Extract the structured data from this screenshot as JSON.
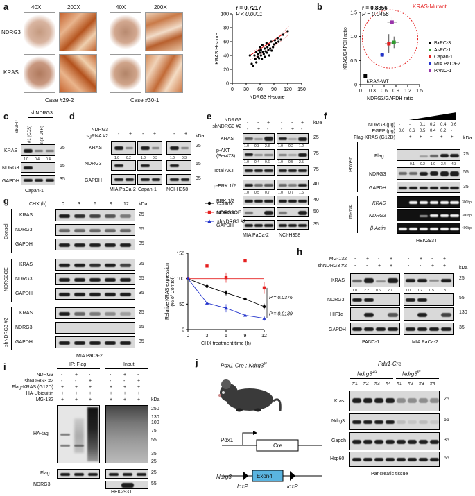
{
  "panels": {
    "a": "a",
    "b": "b",
    "c": "c",
    "d": "d",
    "e": "e",
    "f": "f",
    "g": "g",
    "h": "h",
    "i": "i",
    "j": "j"
  },
  "a": {
    "mags": [
      "40X",
      "200X",
      "40X",
      "200X"
    ],
    "rows": [
      "NDRG3",
      "KRAS"
    ],
    "cases": [
      "Case #29-2",
      "Case #30-1"
    ]
  },
  "chart_data": [
    {
      "type": "scatter",
      "xlabel": "NDRG3 H-score",
      "ylabel": "KRAS H-score",
      "xlim": [
        0,
        150
      ],
      "ylim": [
        0,
        100
      ],
      "xticks": [
        "0",
        "30",
        "60",
        "90",
        "120",
        "150"
      ],
      "yticks": [
        "0",
        "20",
        "40",
        "60",
        "80",
        "100"
      ],
      "r_text": "r = 0.7217",
      "p_text": "P < 0.0001",
      "points": [
        [
          38,
          40
        ],
        [
          42,
          28
        ],
        [
          45,
          25
        ],
        [
          48,
          40
        ],
        [
          50,
          35
        ],
        [
          52,
          45
        ],
        [
          52,
          30
        ],
        [
          55,
          42
        ],
        [
          55,
          38
        ],
        [
          58,
          47
        ],
        [
          58,
          36
        ],
        [
          60,
          52
        ],
        [
          60,
          44
        ],
        [
          62,
          40
        ],
        [
          62,
          48
        ],
        [
          64,
          35
        ],
        [
          65,
          55
        ],
        [
          66,
          45
        ],
        [
          68,
          42
        ],
        [
          70,
          50
        ],
        [
          70,
          38
        ],
        [
          72,
          46
        ],
        [
          74,
          58
        ],
        [
          75,
          44
        ],
        [
          76,
          52
        ],
        [
          78,
          48
        ],
        [
          80,
          40
        ],
        [
          80,
          55
        ],
        [
          82,
          50
        ],
        [
          84,
          60
        ],
        [
          85,
          47
        ],
        [
          88,
          52
        ],
        [
          90,
          56
        ],
        [
          92,
          62
        ],
        [
          95,
          58
        ],
        [
          98,
          65
        ],
        [
          100,
          60
        ],
        [
          105,
          63
        ],
        [
          110,
          70
        ],
        [
          120,
          75
        ]
      ],
      "fit": [
        [
          38,
          40
        ],
        [
          122,
          76
        ]
      ]
    },
    {
      "type": "scatter",
      "xlabel": "NDRG3/GAPDH ratio",
      "ylabel": "KRAS/GAPDH ratio",
      "xlim": [
        0,
        1.5
      ],
      "ylim": [
        0,
        1.5
      ],
      "xticks": [
        "0",
        "0.3",
        "0.6",
        "0.9",
        "1.2",
        "1.5"
      ],
      "yticks": [
        "0",
        "0.5",
        "1.0",
        "1.5"
      ],
      "r_text": "r = 0.8856",
      "p_text": "P = 0.0456",
      "mutant_label": "KRAS-Mutant",
      "wt_label": "KRAS-WT",
      "series": [
        {
          "name": "BxPC-3",
          "x": 0.12,
          "y": 0.18,
          "xerr": 0.02,
          "yerr": 0.02,
          "color": "#000000"
        },
        {
          "name": "AsPC-1",
          "x": 0.85,
          "y": 0.88,
          "xerr": 0.12,
          "yerr": 0.12,
          "color": "#2e9c2e"
        },
        {
          "name": "Capan-1",
          "x": 0.72,
          "y": 0.85,
          "xerr": 0.1,
          "yerr": 0.2,
          "color": "#e52020"
        },
        {
          "name": "MIA PaCa-2",
          "x": 0.55,
          "y": 0.62,
          "xerr": 0.05,
          "yerr": 0.04,
          "color": "#2233cc"
        },
        {
          "name": "PANC-1",
          "x": 0.8,
          "y": 1.3,
          "xerr": 0.12,
          "yerr": 0.1,
          "color": "#9933aa"
        }
      ]
    },
    {
      "type": "line",
      "xlabel": "CHX treatment time (h)",
      "ylabel": "Relative KRAS expression\n(% of Control)",
      "xlim": [
        0,
        12
      ],
      "ylim": [
        0,
        150
      ],
      "xticks": [
        "0",
        "3",
        "6",
        "9",
        "12"
      ],
      "yticks": [
        "0",
        "50",
        "100",
        "150"
      ],
      "x": [
        0,
        3,
        6,
        9,
        12
      ],
      "series": [
        {
          "name": "Control",
          "values": [
            100,
            85,
            72,
            60,
            45
          ],
          "err": [
            0,
            4,
            5,
            5,
            6
          ],
          "color": "#000000",
          "marker": "circle"
        },
        {
          "name": "NDRG3OE",
          "values": [
            100,
            125,
            102,
            135,
            82
          ],
          "err": [
            0,
            8,
            10,
            10,
            12
          ],
          "color": "#e52020",
          "marker": "square"
        },
        {
          "name": "shNDRG3 #2",
          "values": [
            100,
            52,
            42,
            28,
            22
          ],
          "err": [
            0,
            6,
            8,
            6,
            5
          ],
          "color": "#2233cc",
          "marker": "triangle"
        }
      ],
      "p1": "P = 0.0376",
      "p2": "P = 0.0189"
    }
  ],
  "c": {
    "sh": "shNDRG3",
    "lanes": [
      "shGFP",
      "#1 (CDS)",
      "#2 (3' UTR)"
    ],
    "rows": [
      "KRAS",
      "NDRG3",
      "GAPDH"
    ],
    "q": [
      "1.0",
      "0.4",
      "0.4"
    ],
    "kda": [
      "25",
      "55",
      "35"
    ],
    "cell": "Capan-1"
  },
  "d": {
    "rowlabels": [
      "NDRG3",
      "sgRNA #2"
    ],
    "signs": [
      "-",
      "+",
      "-",
      "+",
      "-",
      "+"
    ],
    "rows": [
      "KRAS",
      "NDRG3",
      "GAPDH"
    ],
    "q": [
      "1.0",
      "0.2",
      "1.0",
      "0.3",
      "1.0",
      "0.3"
    ],
    "kda": [
      "25",
      "55",
      "35"
    ],
    "cells": [
      "MIA PaCa-2",
      "Capan-1",
      "NCI-H358"
    ],
    "kda_hdr": "kDa"
  },
  "e": {
    "rowlabels": [
      "NDRG3",
      "shNDRG3 #2"
    ],
    "s1": [
      "-",
      "-",
      "+",
      "-",
      "-",
      "+"
    ],
    "s2": [
      "-",
      "+",
      "-",
      "-",
      "+",
      "-"
    ],
    "rows": [
      "KRAS",
      "p-AKT\n(Ser473)",
      "Total AKT",
      "p-ERK 1/2",
      "ERK 1/2",
      "NDRG3",
      "GAPDH"
    ],
    "q1": [
      "1.0",
      "0.3",
      "2.3",
      "1.0",
      "0.2",
      "1.2"
    ],
    "q2": [
      "1.0",
      "0.4",
      "0.6",
      "1.0",
      "0.5",
      "2.5"
    ],
    "q3": [
      "1.0",
      "0.5",
      "0.7",
      "1.0",
      "0.7",
      "1.6"
    ],
    "kda": [
      "25",
      "75",
      "75",
      "40",
      "40",
      "50",
      "35"
    ],
    "cells": [
      "MIA PaCa-2",
      "NCI-H358"
    ],
    "kda_hdr": "kDa"
  },
  "f": {
    "rowlabels": [
      "NDRG3 (µg)",
      "EGFP (µg)",
      "Flag-KRAS (G12D)"
    ],
    "ndrg3": [
      "-",
      "-",
      "0.1",
      "0.2",
      "0.4",
      "0.6"
    ],
    "egfp": [
      "0.6",
      "0.6",
      "0.5",
      "0.4",
      "0.2",
      "-"
    ],
    "flag": [
      "-",
      "+",
      "+",
      "+",
      "+",
      "+"
    ],
    "rows": [
      "Flag",
      "NDRG3",
      "GAPDH",
      "KRAS",
      "NDRG3",
      "β-Actin"
    ],
    "q": [
      "0.1",
      "0.2",
      "1.0",
      "3.4",
      "4.3"
    ],
    "kda": [
      "25",
      "55",
      "35"
    ],
    "bp": [
      "300bp",
      "300bp",
      "400bp"
    ],
    "protein": "Protein",
    "mrna": "mRNA",
    "cell": "HEK293T",
    "kda_hdr": "kDa"
  },
  "g": {
    "chx": "CHX (h)",
    "times": [
      "0",
      "3",
      "6",
      "9",
      "12"
    ],
    "groups": [
      "Control",
      "NDRG3OE",
      "shNDRG3 #2"
    ],
    "rows": [
      "KRAS",
      "NDRG3",
      "GAPDH"
    ],
    "kda": [
      "25",
      "55",
      "35"
    ],
    "cell": "MIA PaCa-2",
    "kda_hdr": "kDa"
  },
  "h": {
    "rowlabels": [
      "MG-132",
      "shNDRG3 #2"
    ],
    "s1": [
      "-",
      "+",
      "-",
      "+",
      "-",
      "+",
      "-",
      "+"
    ],
    "s2": [
      "-",
      "-",
      "+",
      "+",
      "-",
      "-",
      "+",
      "+"
    ],
    "rows": [
      "KRAS",
      "NDRG3",
      "HIF1α",
      "GAPDH"
    ],
    "q": [
      "1.0",
      "2.2",
      "0.6",
      "2.7",
      "1.0",
      "1.2",
      "0.5",
      "1.3"
    ],
    "kda": [
      "25",
      "55",
      "130",
      "35"
    ],
    "cells": [
      "PANC-1",
      "MIA PaCa-2"
    ],
    "kda_hdr": "kDa"
  },
  "i": {
    "ip": "IP: Flag",
    "input": "Input",
    "rowlabels": [
      "NDRG3",
      "shNDRG3 #2",
      "Flag-KRAS (G12D)",
      "HA-Ubiquitin",
      "MG-132"
    ],
    "r1": [
      "-",
      "+",
      "-",
      "-",
      "+",
      "-"
    ],
    "r2": [
      "-",
      "-",
      "+",
      "-",
      "-",
      "+"
    ],
    "r3": [
      "+",
      "+",
      "+",
      "+",
      "+",
      "+"
    ],
    "r4": [
      "+",
      "+",
      "+",
      "+",
      "+",
      "+"
    ],
    "r5": [
      "+",
      "+",
      "+",
      "+",
      "+",
      "+"
    ],
    "rows": [
      "HA-tag",
      "Flag",
      "NDRG3"
    ],
    "kda": [
      "250",
      "130",
      "100",
      "75",
      "55",
      "35",
      "25",
      "25",
      "55"
    ],
    "cell": "HEK293T",
    "kda_hdr": "kDa"
  },
  "j": {
    "title": "Pdx1-Cre ; Ndrg3",
    "title_sup": "f/f",
    "pdx1": "Pdx1",
    "cre": "Cre",
    "ndrg3": "Ndrg3",
    "exon": "Exon4",
    "loxp": "loxP",
    "header": "Pdx1-Cre",
    "g1": "Ndrg3",
    "g1sup": "+/+",
    "g2": "Ndrg3",
    "g2sup": "f/f",
    "lanes": [
      "#1",
      "#2",
      "#3",
      "#4",
      "#1",
      "#2",
      "#3",
      "#4"
    ],
    "rows": [
      "Kras",
      "Ndrg3",
      "Gapdh",
      "Hsp60"
    ],
    "kda": [
      "25",
      "55",
      "35",
      "55"
    ],
    "tissue": "Pancreatic tissue"
  }
}
